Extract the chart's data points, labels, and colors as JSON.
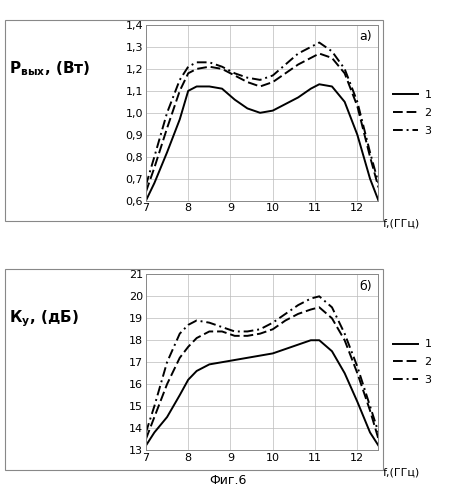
{
  "fig_title": "Фиг.6",
  "top": {
    "ylabel": "Р_вых , (Вт)",
    "xlabel": "f,(ГГц)",
    "label": "а)",
    "ylim": [
      0.6,
      1.4
    ],
    "yticks": [
      0.6,
      0.7,
      0.8,
      0.9,
      1.0,
      1.1,
      1.2,
      1.3,
      1.4
    ],
    "xlim": [
      7,
      12.5
    ],
    "xticks": [
      7,
      8,
      9,
      10,
      11,
      12
    ],
    "x": [
      7.0,
      7.2,
      7.5,
      7.8,
      8.0,
      8.2,
      8.5,
      8.8,
      9.1,
      9.4,
      9.7,
      10.0,
      10.3,
      10.6,
      10.9,
      11.1,
      11.4,
      11.7,
      12.0,
      12.3,
      12.5
    ],
    "line1": [
      0.6,
      0.68,
      0.82,
      0.97,
      1.1,
      1.12,
      1.12,
      1.11,
      1.06,
      1.02,
      1.0,
      1.01,
      1.04,
      1.07,
      1.11,
      1.13,
      1.12,
      1.05,
      0.9,
      0.7,
      0.6
    ],
    "line2": [
      0.64,
      0.75,
      0.93,
      1.1,
      1.18,
      1.2,
      1.21,
      1.2,
      1.17,
      1.14,
      1.12,
      1.14,
      1.18,
      1.22,
      1.25,
      1.27,
      1.25,
      1.18,
      1.03,
      0.8,
      0.66
    ],
    "line3": [
      0.67,
      0.8,
      1.0,
      1.15,
      1.21,
      1.23,
      1.23,
      1.21,
      1.18,
      1.16,
      1.15,
      1.17,
      1.22,
      1.27,
      1.3,
      1.32,
      1.28,
      1.2,
      1.05,
      0.82,
      0.68
    ]
  },
  "bottom": {
    "ylabel": "К_у, (дБ)",
    "xlabel": "f,(ГГц)",
    "label": "б)",
    "ylim": [
      13,
      21
    ],
    "yticks": [
      13,
      14,
      15,
      16,
      17,
      18,
      19,
      20,
      21
    ],
    "xlim": [
      7,
      12.5
    ],
    "xticks": [
      7,
      8,
      9,
      10,
      11,
      12
    ],
    "x": [
      7.0,
      7.2,
      7.5,
      7.8,
      8.0,
      8.2,
      8.5,
      8.8,
      9.1,
      9.4,
      9.7,
      10.0,
      10.3,
      10.6,
      10.9,
      11.1,
      11.4,
      11.7,
      12.0,
      12.3,
      12.5
    ],
    "line1": [
      13.2,
      13.8,
      14.5,
      15.5,
      16.2,
      16.6,
      16.9,
      17.0,
      17.1,
      17.2,
      17.3,
      17.4,
      17.6,
      17.8,
      18.0,
      18.0,
      17.5,
      16.5,
      15.2,
      13.8,
      13.2
    ],
    "line2": [
      13.5,
      14.5,
      16.0,
      17.2,
      17.7,
      18.1,
      18.4,
      18.4,
      18.2,
      18.2,
      18.3,
      18.5,
      18.9,
      19.2,
      19.4,
      19.5,
      19.0,
      18.0,
      16.5,
      14.8,
      13.5
    ],
    "line3": [
      13.8,
      15.0,
      17.0,
      18.3,
      18.7,
      18.9,
      18.8,
      18.6,
      18.4,
      18.4,
      18.5,
      18.8,
      19.2,
      19.6,
      19.9,
      20.0,
      19.5,
      18.3,
      16.8,
      15.0,
      13.8
    ]
  },
  "background_color": "#ffffff"
}
